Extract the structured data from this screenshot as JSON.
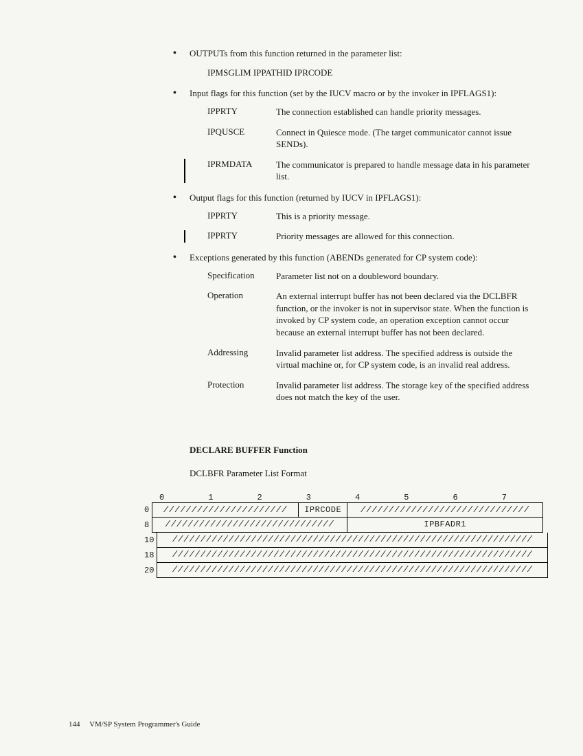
{
  "bullets": [
    {
      "text": "OUTPUTs from this function returned in the parameter list:",
      "code_line": "IPMSGLIM  IPPATHID  IPRCODE"
    },
    {
      "text": "Input flags for this function (set by the IUCV macro or by the invoker in IPFLAGS1):",
      "defs": [
        {
          "term": "IPPRTY",
          "desc": "The connection established can handle priority messages.",
          "rev": false
        },
        {
          "term": "IPQUSCE",
          "desc": "Connect in Quiesce mode.  (The target communicator cannot issue SENDs).",
          "rev": false
        },
        {
          "term": "IPRMDATA",
          "desc": "The communicator is prepared to handle message data in his parameter list.",
          "rev": true
        }
      ]
    },
    {
      "text": "Output flags for this function (returned by IUCV in IPFLAGS1):",
      "defs": [
        {
          "term": "IPPRTY",
          "desc": "This is a priority message.",
          "rev": false
        },
        {
          "term": "IPPRTY",
          "desc": "Priority messages are allowed for this connection.",
          "rev": true
        }
      ]
    },
    {
      "text": "Exceptions generated by this function (ABENDs generated for CP system code):",
      "defs": [
        {
          "term": "Specification",
          "desc": "Parameter list not on a doubleword boundary.",
          "rev": false
        },
        {
          "term": "Operation",
          "desc": "An external interrupt buffer has not been declared via the DCLBFR function, or the invoker is not in supervisor state.  When the function is invoked by CP system code, an operation exception cannot occur because an external interrupt buffer has not been declared.",
          "rev": false
        },
        {
          "term": "Addressing",
          "desc": "Invalid parameter list address.  The specified address is outside the virtual machine or, for CP system code, is an invalid real address.",
          "rev": false
        },
        {
          "term": "Protection",
          "desc": "Invalid parameter list address.  The storage key of the specified address does not match the key of the user.",
          "rev": false
        }
      ]
    }
  ],
  "section_heading": "DECLARE BUFFER Function",
  "section_sub": "DCLBFR Parameter List Format",
  "table": {
    "col_headers": [
      "0",
      "1",
      "2",
      "3",
      "4",
      "5",
      "6",
      "7"
    ],
    "hatch": "////////////////////////////////////////////////////",
    "rows": [
      {
        "offset": "0",
        "cells": [
          {
            "w": 3,
            "text": "//////////////////////",
            "hatch": true
          },
          {
            "w": 1,
            "text": "IPRCODE",
            "hatch": false
          },
          {
            "w": 4,
            "text": "//////////////////////////////",
            "hatch": true
          }
        ]
      },
      {
        "offset": "8",
        "cells": [
          {
            "w": 4,
            "text": "//////////////////////////////",
            "hatch": true
          },
          {
            "w": 4,
            "text": "IPBFADR1",
            "hatch": false
          }
        ]
      },
      {
        "offset": "10",
        "cells": [
          {
            "w": 8,
            "text": "////////////////////////////////////////////////////////////////",
            "hatch": true
          }
        ]
      },
      {
        "offset": "18",
        "cells": [
          {
            "w": 8,
            "text": "////////////////////////////////////////////////////////////////",
            "hatch": true
          }
        ]
      },
      {
        "offset": "20",
        "cells": [
          {
            "w": 8,
            "text": "////////////////////////////////////////////////////////////////",
            "hatch": true
          }
        ]
      }
    ]
  },
  "footer_page": "144",
  "footer_title": "VM/SP System Programmer's Guide"
}
